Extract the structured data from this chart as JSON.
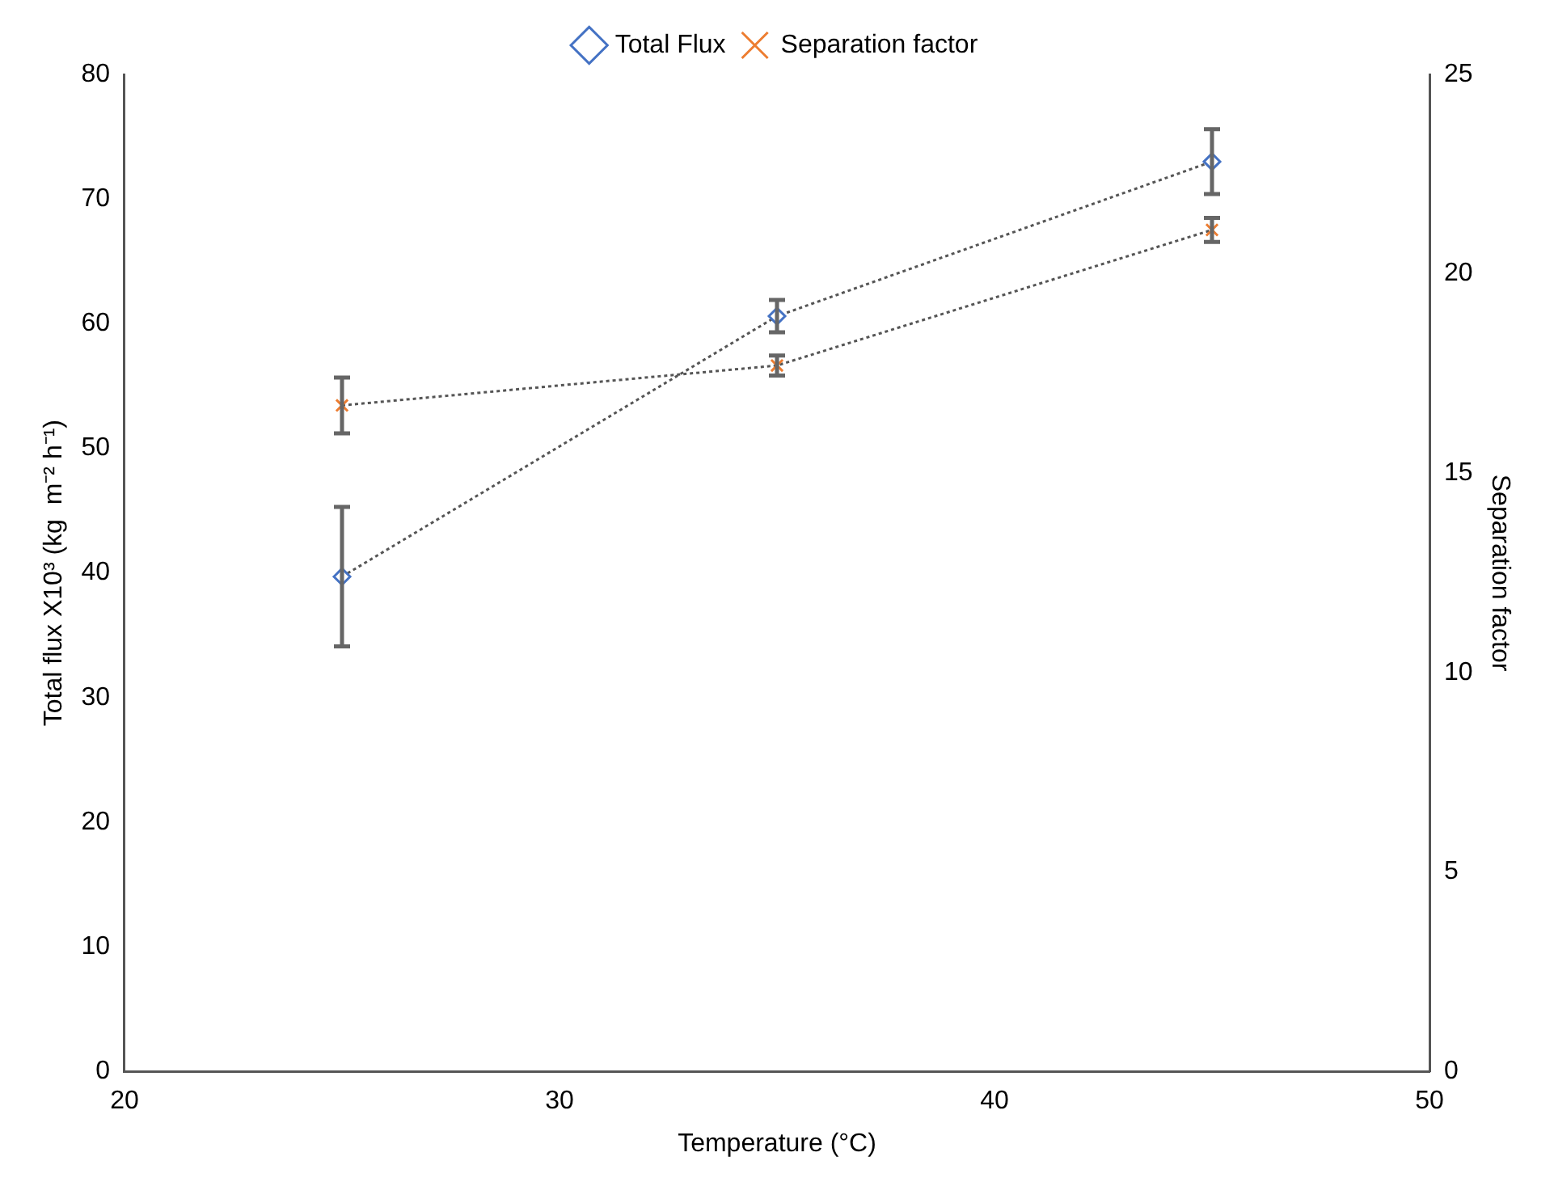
{
  "chart_data": {
    "type": "line",
    "xlabel": "Temperature (°C)",
    "ylabel": "Total flux X10³ (kg  m⁻² h⁻¹)",
    "y2label": "Separation factor",
    "x": [
      25,
      35,
      45
    ],
    "series": [
      {
        "name": "Total Flux",
        "color": "#4472c4",
        "marker": "diamond",
        "values": [
          39.7,
          60.6,
          73.0
        ],
        "errors": [
          5.6,
          1.3,
          2.6
        ]
      },
      {
        "name": "Separation factor",
        "color": "#ed7d31",
        "marker": "cross",
        "axis": "y2",
        "values": [
          16.7,
          17.7,
          21.1
        ],
        "errors": [
          0.7,
          0.25,
          0.3
        ]
      }
    ],
    "xlim": [
      20,
      50
    ],
    "xticks": [
      20,
      30,
      40,
      50
    ],
    "ylim": [
      0,
      80
    ],
    "yticks": [
      0,
      10,
      20,
      30,
      40,
      50,
      60,
      70,
      80
    ],
    "y2lim": [
      0,
      25
    ],
    "y2ticks": [
      0,
      5,
      10,
      15,
      20,
      25
    ],
    "grid": false,
    "legend": "top",
    "line_style": "dotted"
  }
}
